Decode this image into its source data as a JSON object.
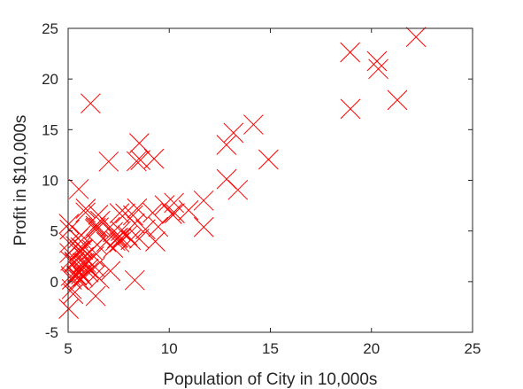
{
  "chart_data": {
    "type": "scatter",
    "title": "",
    "xlabel": "Population of City in 10,000s",
    "ylabel": "Profit in $10,000s",
    "xlim": [
      5,
      25
    ],
    "ylim": [
      -5,
      25
    ],
    "xticks": [
      5,
      10,
      15,
      20,
      25
    ],
    "yticks": [
      -5,
      0,
      5,
      10,
      15,
      20,
      25
    ],
    "grid": false,
    "legend": "none",
    "marker": "x",
    "marker_color": "#ff0000",
    "series": [
      {
        "points": [
          [
            6.1101,
            17.592
          ],
          [
            5.5277,
            9.1302
          ],
          [
            8.5186,
            13.662
          ],
          [
            7.0032,
            11.854
          ],
          [
            5.8598,
            6.8233
          ],
          [
            8.3829,
            11.886
          ],
          [
            7.4764,
            4.3483
          ],
          [
            8.5781,
            12.0
          ],
          [
            6.4862,
            6.5987
          ],
          [
            5.0546,
            3.8166
          ],
          [
            5.7107,
            3.2522
          ],
          [
            14.164,
            15.505
          ],
          [
            5.734,
            3.1551
          ],
          [
            8.4084,
            7.2258
          ],
          [
            5.6407,
            0.71618
          ],
          [
            5.3794,
            3.5129
          ],
          [
            6.3654,
            5.3048
          ],
          [
            5.1301,
            0.56077
          ],
          [
            6.4296,
            3.6518
          ],
          [
            7.0708,
            5.3893
          ],
          [
            6.1891,
            3.1386
          ],
          [
            20.27,
            21.767
          ],
          [
            5.4901,
            4.263
          ],
          [
            6.3261,
            5.1875
          ],
          [
            5.5649,
            3.0825
          ],
          [
            18.945,
            22.638
          ],
          [
            12.828,
            13.501
          ],
          [
            10.957,
            7.0467
          ],
          [
            13.176,
            14.692
          ],
          [
            22.203,
            24.147
          ],
          [
            5.2524,
            -1.22
          ],
          [
            6.5894,
            5.9966
          ],
          [
            9.2482,
            12.134
          ],
          [
            5.8918,
            1.8495
          ],
          [
            8.2111,
            6.5426
          ],
          [
            7.9334,
            4.5623
          ],
          [
            8.0959,
            4.1164
          ],
          [
            5.6063,
            3.3928
          ],
          [
            12.836,
            10.117
          ],
          [
            6.3534,
            5.4974
          ],
          [
            5.4069,
            0.55657
          ],
          [
            6.8825,
            3.9115
          ],
          [
            11.708,
            5.3854
          ],
          [
            5.7737,
            2.4406
          ],
          [
            7.8247,
            6.7318
          ],
          [
            7.0931,
            1.0463
          ],
          [
            5.0702,
            5.1337
          ],
          [
            5.8014,
            1.844
          ],
          [
            11.7,
            8.0043
          ],
          [
            5.5416,
            1.0179
          ],
          [
            7.5402,
            6.7504
          ],
          [
            5.3077,
            1.8396
          ],
          [
            7.4239,
            4.2885
          ],
          [
            7.6031,
            4.9981
          ],
          [
            6.3328,
            1.4233
          ],
          [
            6.3589,
            -1.4211
          ],
          [
            6.2742,
            2.4756
          ],
          [
            5.6397,
            4.6042
          ],
          [
            9.3102,
            3.9624
          ],
          [
            9.4536,
            5.4141
          ],
          [
            8.8254,
            5.1694
          ],
          [
            5.1793,
            -0.74279
          ],
          [
            21.279,
            17.929
          ],
          [
            14.908,
            12.054
          ],
          [
            18.959,
            17.054
          ],
          [
            7.2182,
            4.8852
          ],
          [
            8.2951,
            5.7442
          ],
          [
            10.236,
            7.7754
          ],
          [
            5.4994,
            1.0173
          ],
          [
            20.341,
            20.992
          ],
          [
            10.136,
            6.6799
          ],
          [
            7.3345,
            4.0259
          ],
          [
            6.0062,
            1.2784
          ],
          [
            7.2259,
            3.3411
          ],
          [
            5.0269,
            -2.6807
          ],
          [
            6.5479,
            0.29678
          ],
          [
            7.5386,
            3.8845
          ],
          [
            5.0365,
            5.7014
          ],
          [
            10.274,
            6.7526
          ],
          [
            5.1077,
            2.0576
          ],
          [
            5.7292,
            0.47953
          ],
          [
            5.1884,
            0.20421
          ],
          [
            6.3557,
            0.67861
          ],
          [
            9.7687,
            7.5435
          ],
          [
            6.5159,
            5.3436
          ],
          [
            8.5172,
            4.2415
          ],
          [
            9.1802,
            6.7981
          ],
          [
            6.002,
            0.92695
          ],
          [
            5.5204,
            0.152
          ],
          [
            5.0594,
            2.8214
          ],
          [
            5.7077,
            1.8451
          ],
          [
            7.6366,
            4.2959
          ],
          [
            5.8707,
            7.2029
          ],
          [
            5.3054,
            1.9869
          ],
          [
            8.2934,
            0.14454
          ],
          [
            13.394,
            9.0551
          ],
          [
            5.4369,
            0.61705
          ]
        ]
      }
    ]
  }
}
